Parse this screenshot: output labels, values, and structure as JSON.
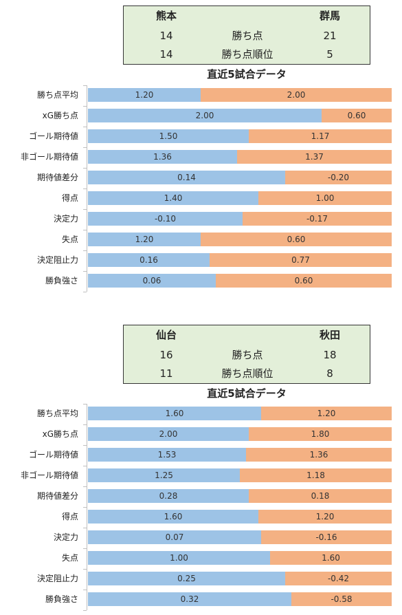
{
  "colors": {
    "team_a": "#9dc3e6",
    "team_b": "#f4b183",
    "info_bg": "#e3efd9"
  },
  "matches": [
    {
      "team_a": "熊本",
      "team_b": "群馬",
      "stat1_label": "勝ち点",
      "stat1_a": "14",
      "stat1_b": "21",
      "stat2_label": "勝ち点順位",
      "stat2_a": "14",
      "stat2_b": "5",
      "subtitle": "直近5試合データ"
    },
    {
      "team_a": "仙台",
      "team_b": "秋田",
      "stat1_label": "勝ち点",
      "stat1_a": "16",
      "stat1_b": "18",
      "stat2_label": "勝ち点順位",
      "stat2_a": "11",
      "stat2_b": "8",
      "subtitle": "直近5試合データ"
    }
  ],
  "chart_data": [
    {
      "type": "bar",
      "stacking": "100% horizontal",
      "categories": [
        "勝ち点平均",
        "xG勝ち点",
        "ゴール期待値",
        "非ゴール期待値",
        "期待値差分",
        "得点",
        "決定力",
        "失点",
        "決定阻止力",
        "勝負強さ"
      ],
      "series": [
        {
          "name": "熊本",
          "values": [
            1.2,
            2.0,
            1.5,
            1.36,
            0.14,
            1.4,
            -0.1,
            1.2,
            0.16,
            0.06
          ],
          "labels": [
            "1.20",
            "2.00",
            "1.50",
            "1.36",
            "0.14",
            "1.40",
            "-0.10",
            "1.20",
            "0.16",
            "0.06"
          ],
          "share": [
            0.37,
            0.77,
            0.53,
            0.49,
            0.65,
            0.56,
            0.51,
            0.37,
            0.4,
            0.42
          ]
        },
        {
          "name": "群馬",
          "values": [
            2.0,
            0.6,
            1.17,
            1.37,
            -0.2,
            1.0,
            -0.17,
            0.6,
            0.77,
            0.6
          ],
          "labels": [
            "2.00",
            "0.60",
            "1.17",
            "1.37",
            "-0.20",
            "1.00",
            "-0.17",
            "0.60",
            "0.77",
            "0.60"
          ]
        }
      ]
    },
    {
      "type": "bar",
      "stacking": "100% horizontal",
      "categories": [
        "勝ち点平均",
        "xG勝ち点",
        "ゴール期待値",
        "非ゴール期待値",
        "期待値差分",
        "得点",
        "決定力",
        "失点",
        "決定阻止力",
        "勝負強さ"
      ],
      "series": [
        {
          "name": "仙台",
          "values": [
            1.6,
            2.0,
            1.53,
            1.25,
            0.28,
            1.6,
            0.07,
            1.0,
            0.25,
            0.32
          ],
          "labels": [
            "1.60",
            "2.00",
            "1.53",
            "1.25",
            "0.28",
            "1.60",
            "0.07",
            "1.00",
            "0.25",
            "0.32"
          ],
          "share": [
            0.57,
            0.53,
            0.52,
            0.5,
            0.53,
            0.56,
            0.57,
            0.6,
            0.65,
            0.67
          ]
        },
        {
          "name": "秋田",
          "values": [
            1.2,
            1.8,
            1.36,
            1.18,
            0.18,
            1.2,
            -0.16,
            1.6,
            -0.42,
            -0.58
          ],
          "labels": [
            "1.20",
            "1.80",
            "1.36",
            "1.18",
            "0.18",
            "1.20",
            "-0.16",
            "1.60",
            "-0.42",
            "-0.58"
          ]
        }
      ]
    }
  ]
}
